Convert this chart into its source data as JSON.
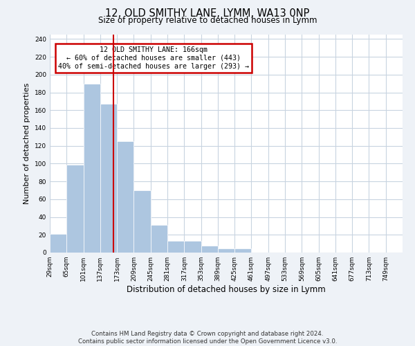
{
  "title": "12, OLD SMITHY LANE, LYMM, WA13 0NP",
  "subtitle": "Size of property relative to detached houses in Lymm",
  "xlabel": "Distribution of detached houses by size in Lymm",
  "ylabel": "Number of detached properties",
  "bin_labels": [
    "29sqm",
    "65sqm",
    "101sqm",
    "137sqm",
    "173sqm",
    "209sqm",
    "245sqm",
    "281sqm",
    "317sqm",
    "353sqm",
    "389sqm",
    "425sqm",
    "461sqm",
    "497sqm",
    "533sqm",
    "569sqm",
    "605sqm",
    "641sqm",
    "677sqm",
    "713sqm",
    "749sqm"
  ],
  "bin_edges": [
    29,
    65,
    101,
    137,
    173,
    209,
    245,
    281,
    317,
    353,
    389,
    425,
    461,
    497,
    533,
    569,
    605,
    641,
    677,
    713,
    749
  ],
  "bar_heights": [
    21,
    99,
    190,
    167,
    125,
    70,
    31,
    13,
    13,
    8,
    5,
    5,
    0,
    0,
    0,
    0,
    0,
    0,
    0,
    0
  ],
  "bar_color": "#adc6e0",
  "bar_edge_color": "#adc6e0",
  "vline_x": 166,
  "vline_color": "#cc0000",
  "annotation_line1": "12 OLD SMITHY LANE: 166sqm",
  "annotation_line2": "← 60% of detached houses are smaller (443)",
  "annotation_line3": "40% of semi-detached houses are larger (293) →",
  "annotation_box_color": "#cc0000",
  "ylim": [
    0,
    245
  ],
  "yticks": [
    0,
    20,
    40,
    60,
    80,
    100,
    120,
    140,
    160,
    180,
    200,
    220,
    240
  ],
  "footer_text": "Contains HM Land Registry data © Crown copyright and database right 2024.\nContains public sector information licensed under the Open Government Licence v3.0.",
  "bg_color": "#eef2f7",
  "plot_bg_color": "#ffffff",
  "grid_color": "#c8d4e0"
}
